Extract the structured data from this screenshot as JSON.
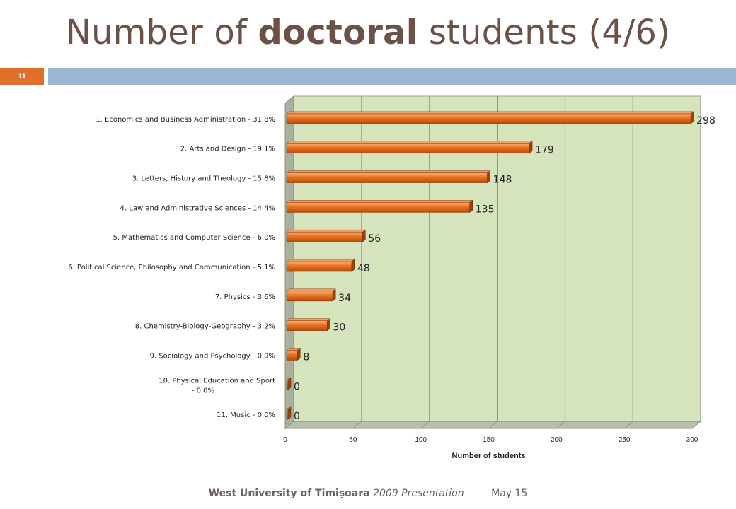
{
  "slide": {
    "title_pre": "Number of ",
    "title_bold": "doctoral",
    "title_post": " students (4/6)",
    "slide_number": "11",
    "footer_org": "West University of Timișoara",
    "footer_pres": "2009 Presentation",
    "footer_date": "May 15"
  },
  "colors": {
    "title": "#6d5146",
    "accent_orange": "#e06f2c",
    "header_bar": "#9cb6d2",
    "plot_bg": "#d6e4bd",
    "bar": "#e8711e"
  },
  "chart_data": {
    "type": "bar",
    "orientation": "horizontal",
    "categories": [
      "1. Economics and Business Administration - 31.8%",
      "2. Arts and Design - 19.1%",
      "3. Letters, History and Theology - 15.8%",
      "4. Law and Administrative Sciences - 14.4%",
      "5. Mathematics and Computer Science - 6.0%",
      "6. Political Science, Philosophy and Communication - 5.1%",
      "7. Physics - 3.6%",
      "8. Chemistry-Biology-Geography - 3.2%",
      "9. Sociology and Psychology - 0.9%",
      "10. Physical Education and Sport - 0.0%",
      "11. Music - 0.0%"
    ],
    "category_lines": [
      [
        "1. Economics and Business Administration - 31.8%"
      ],
      [
        "2. Arts and Design - 19.1%"
      ],
      [
        "3. Letters, History and Theology - 15.8%"
      ],
      [
        "4. Law and Administrative Sciences - 14.4%"
      ],
      [
        "5. Mathematics and Computer Science - 6.0%"
      ],
      [
        "6. Political Science, Philosophy and Communication - 5.1%"
      ],
      [
        "7. Physics - 3.6%"
      ],
      [
        "8. Chemistry-Biology-Geography - 3.2%"
      ],
      [
        "9. Sociology and Psychology - 0.9%"
      ],
      [
        "10. Physical Education and Sport",
        "- 0.0%"
      ],
      [
        "11. Music - 0.0%"
      ]
    ],
    "values": [
      298,
      179,
      148,
      135,
      56,
      48,
      34,
      30,
      8,
      0,
      0
    ],
    "xlabel": "Number of students",
    "ylabel": "",
    "xlim": [
      0,
      300
    ],
    "xticks": [
      0,
      50,
      100,
      150,
      200,
      250,
      300
    ],
    "grid": true,
    "legend": "none",
    "data_labels": true
  }
}
